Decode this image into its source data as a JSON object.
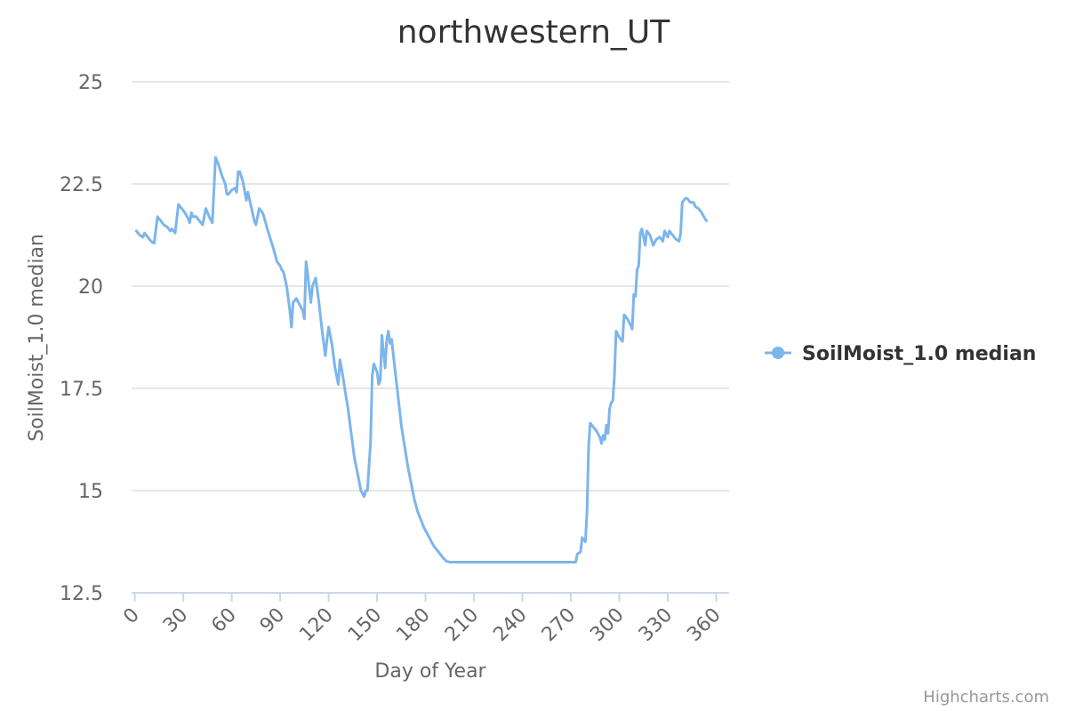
{
  "chart_data": {
    "type": "line",
    "title": "northwestern_UT",
    "xlabel": "Day of Year",
    "ylabel": "SoilMoist_1.0 median",
    "xlim": [
      -2,
      368
    ],
    "ylim": [
      12.5,
      25
    ],
    "x_ticks": [
      0,
      30,
      60,
      90,
      120,
      150,
      180,
      210,
      240,
      270,
      300,
      330,
      360
    ],
    "y_ticks": [
      12.5,
      15,
      17.5,
      20,
      22.5,
      25
    ],
    "y_tick_labels": [
      "12.5",
      "15",
      "17.5",
      "20",
      "22.5",
      "25"
    ],
    "grid": true,
    "legend_position": "right",
    "series": [
      {
        "name": "SoilMoist_1.0 median",
        "color": "#7cb5ec",
        "points": [
          [
            1,
            21.35
          ],
          [
            3,
            21.25
          ],
          [
            5,
            21.2
          ],
          [
            6,
            21.3
          ],
          [
            8,
            21.2
          ],
          [
            10,
            21.1
          ],
          [
            12,
            21.05
          ],
          [
            14,
            21.7
          ],
          [
            16,
            21.6
          ],
          [
            18,
            21.5
          ],
          [
            20,
            21.45
          ],
          [
            22,
            21.35
          ],
          [
            23,
            21.4
          ],
          [
            25,
            21.3
          ],
          [
            27,
            22.0
          ],
          [
            29,
            21.9
          ],
          [
            31,
            21.8
          ],
          [
            33,
            21.65
          ],
          [
            34,
            21.55
          ],
          [
            35,
            21.8
          ],
          [
            36,
            21.7
          ],
          [
            38,
            21.7
          ],
          [
            40,
            21.6
          ],
          [
            42,
            21.5
          ],
          [
            44,
            21.9
          ],
          [
            46,
            21.7
          ],
          [
            48,
            21.55
          ],
          [
            50,
            23.15
          ],
          [
            52,
            22.95
          ],
          [
            54,
            22.7
          ],
          [
            56,
            22.5
          ],
          [
            57,
            22.25
          ],
          [
            58,
            22.25
          ],
          [
            60,
            22.35
          ],
          [
            62,
            22.4
          ],
          [
            63,
            22.3
          ],
          [
            64,
            22.8
          ],
          [
            65,
            22.8
          ],
          [
            67,
            22.55
          ],
          [
            69,
            22.1
          ],
          [
            70,
            22.3
          ],
          [
            72,
            21.95
          ],
          [
            74,
            21.6
          ],
          [
            75,
            21.5
          ],
          [
            77,
            21.9
          ],
          [
            79,
            21.8
          ],
          [
            80,
            21.7
          ],
          [
            82,
            21.4
          ],
          [
            84,
            21.15
          ],
          [
            86,
            20.9
          ],
          [
            88,
            20.6
          ],
          [
            90,
            20.5
          ],
          [
            91,
            20.4
          ],
          [
            92,
            20.35
          ],
          [
            94,
            20.0
          ],
          [
            96,
            19.4
          ],
          [
            97,
            19.0
          ],
          [
            98,
            19.6
          ],
          [
            100,
            19.7
          ],
          [
            102,
            19.55
          ],
          [
            104,
            19.4
          ],
          [
            105,
            19.2
          ],
          [
            106,
            20.6
          ],
          [
            107,
            20.3
          ],
          [
            109,
            19.6
          ],
          [
            110,
            20.0
          ],
          [
            112,
            20.2
          ],
          [
            114,
            19.6
          ],
          [
            116,
            18.9
          ],
          [
            118,
            18.3
          ],
          [
            119,
            18.7
          ],
          [
            120,
            19.0
          ],
          [
            122,
            18.6
          ],
          [
            124,
            18.0
          ],
          [
            126,
            17.6
          ],
          [
            127,
            18.2
          ],
          [
            128,
            18.0
          ],
          [
            130,
            17.5
          ],
          [
            132,
            17.0
          ],
          [
            134,
            16.4
          ],
          [
            136,
            15.8
          ],
          [
            138,
            15.4
          ],
          [
            140,
            15.0
          ],
          [
            142,
            14.85
          ],
          [
            143,
            15.0
          ],
          [
            144,
            15.0
          ],
          [
            146,
            16.2
          ],
          [
            147,
            17.8
          ],
          [
            148,
            18.1
          ],
          [
            150,
            17.9
          ],
          [
            151,
            17.6
          ],
          [
            152,
            17.7
          ],
          [
            153,
            18.8
          ],
          [
            154,
            18.4
          ],
          [
            155,
            18.0
          ],
          [
            156,
            18.7
          ],
          [
            157,
            18.9
          ],
          [
            158,
            18.6
          ],
          [
            159,
            18.7
          ],
          [
            161,
            18.0
          ],
          [
            163,
            17.3
          ],
          [
            165,
            16.6
          ],
          [
            167,
            16.1
          ],
          [
            169,
            15.6
          ],
          [
            171,
            15.2
          ],
          [
            173,
            14.8
          ],
          [
            175,
            14.5
          ],
          [
            177,
            14.3
          ],
          [
            179,
            14.1
          ],
          [
            181,
            13.95
          ],
          [
            183,
            13.8
          ],
          [
            185,
            13.65
          ],
          [
            187,
            13.55
          ],
          [
            189,
            13.45
          ],
          [
            191,
            13.35
          ],
          [
            193,
            13.27
          ],
          [
            195,
            13.25
          ],
          [
            200,
            13.25
          ],
          [
            210,
            13.25
          ],
          [
            220,
            13.25
          ],
          [
            230,
            13.25
          ],
          [
            240,
            13.25
          ],
          [
            250,
            13.25
          ],
          [
            260,
            13.25
          ],
          [
            270,
            13.25
          ],
          [
            273,
            13.25
          ],
          [
            274,
            13.45
          ],
          [
            276,
            13.5
          ],
          [
            277,
            13.85
          ],
          [
            278,
            13.8
          ],
          [
            279,
            13.75
          ],
          [
            280,
            14.5
          ],
          [
            281,
            16.1
          ],
          [
            282,
            16.65
          ],
          [
            284,
            16.55
          ],
          [
            286,
            16.45
          ],
          [
            288,
            16.3
          ],
          [
            289,
            16.15
          ],
          [
            290,
            16.35
          ],
          [
            291,
            16.25
          ],
          [
            292,
            16.6
          ],
          [
            293,
            16.4
          ],
          [
            294,
            17.0
          ],
          [
            295,
            17.15
          ],
          [
            296,
            17.2
          ],
          [
            297,
            17.8
          ],
          [
            298,
            18.9
          ],
          [
            300,
            18.75
          ],
          [
            302,
            18.65
          ],
          [
            303,
            19.3
          ],
          [
            305,
            19.2
          ],
          [
            307,
            19.05
          ],
          [
            308,
            18.95
          ],
          [
            309,
            19.8
          ],
          [
            310,
            19.75
          ],
          [
            311,
            20.4
          ],
          [
            312,
            20.5
          ],
          [
            313,
            21.3
          ],
          [
            314,
            21.4
          ],
          [
            316,
            21.0
          ],
          [
            317,
            21.35
          ],
          [
            319,
            21.25
          ],
          [
            321,
            21.0
          ],
          [
            323,
            21.15
          ],
          [
            325,
            21.2
          ],
          [
            327,
            21.1
          ],
          [
            328,
            21.35
          ],
          [
            330,
            21.2
          ],
          [
            331,
            21.35
          ],
          [
            333,
            21.25
          ],
          [
            335,
            21.15
          ],
          [
            337,
            21.1
          ],
          [
            338,
            21.3
          ],
          [
            339,
            22.05
          ],
          [
            341,
            22.15
          ],
          [
            342,
            22.15
          ],
          [
            344,
            22.05
          ],
          [
            346,
            22.05
          ],
          [
            347,
            21.95
          ],
          [
            349,
            21.9
          ],
          [
            351,
            21.8
          ],
          [
            353,
            21.65
          ],
          [
            354,
            21.6
          ]
        ]
      }
    ]
  },
  "credits": "Highcharts.com"
}
